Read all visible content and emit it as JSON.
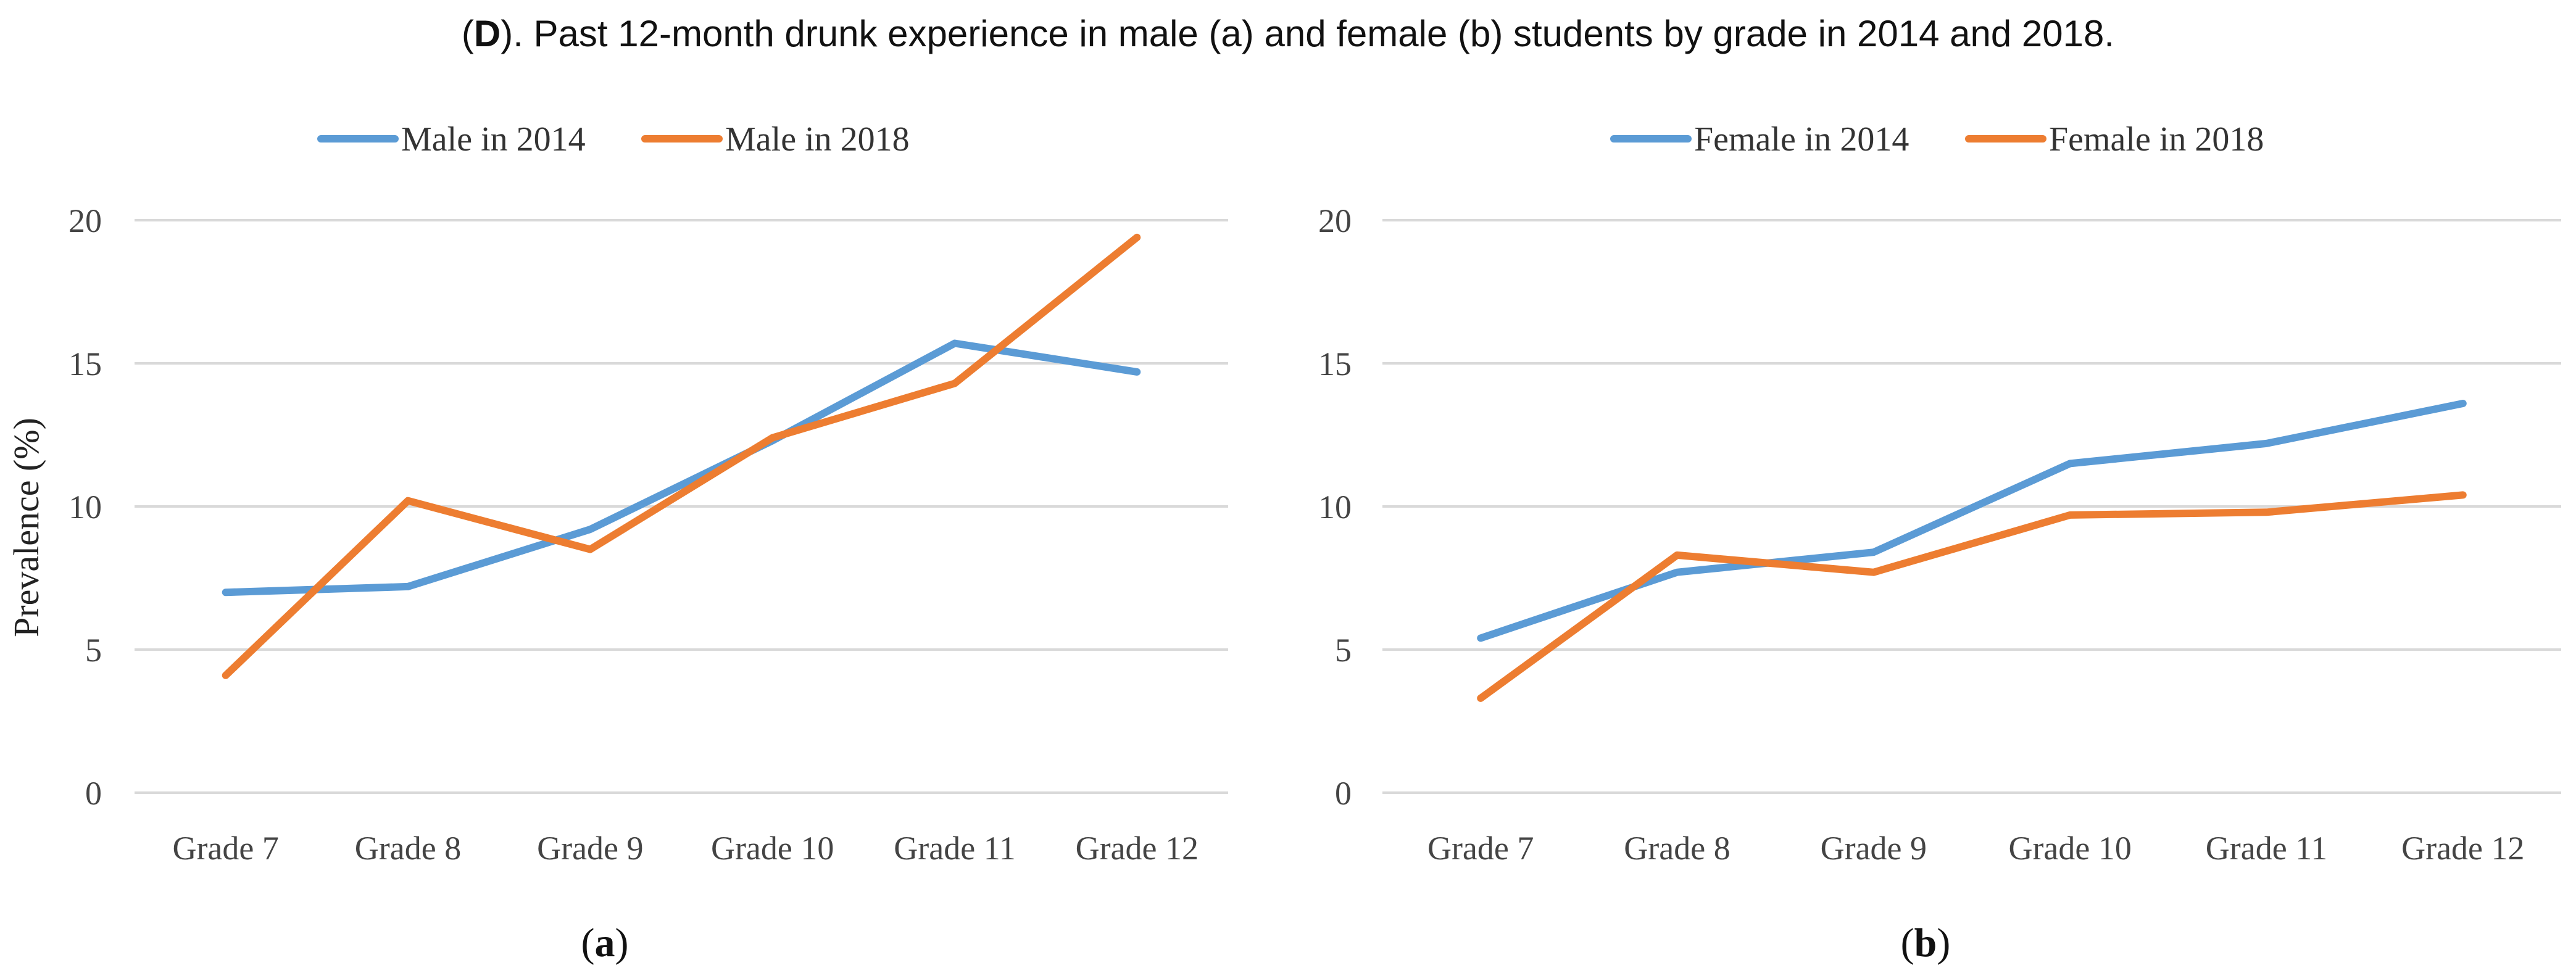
{
  "figure": {
    "title_prefix": "(",
    "title_bold": "D",
    "title_rest": "). Past 12-month drunk experience in male (a) and female (b) students by grade in 2014 and 2018."
  },
  "colors": {
    "blue": "#5b9bd5",
    "orange": "#ed7d31",
    "grid": "#d9d9d9"
  },
  "chart_data": [
    {
      "type": "line",
      "panel_label": "a",
      "ylabel": "Prevalence (%)",
      "ylim": [
        0,
        20
      ],
      "yticks": [
        "0",
        "5",
        "10",
        "15",
        "20"
      ],
      "grid": true,
      "legend": "top-center",
      "categories": [
        "Grade 7",
        "Grade 8",
        "Grade 9",
        "Grade 10",
        "Grade 11",
        "Grade 12"
      ],
      "series": [
        {
          "name": "Male in 2014",
          "color": "#5b9bd5",
          "values": [
            7.0,
            7.2,
            9.2,
            12.3,
            15.7,
            14.7
          ]
        },
        {
          "name": "Male in 2018",
          "color": "#ed7d31",
          "values": [
            4.1,
            10.2,
            8.5,
            12.4,
            14.3,
            19.4
          ]
        }
      ]
    },
    {
      "type": "line",
      "panel_label": "b",
      "ylabel": "",
      "ylim": [
        0,
        20
      ],
      "yticks": [
        "0",
        "5",
        "10",
        "15",
        "20"
      ],
      "grid": true,
      "legend": "top-center",
      "categories": [
        "Grade 7",
        "Grade 8",
        "Grade 9",
        "Grade 10",
        "Grade 11",
        "Grade 12"
      ],
      "series": [
        {
          "name": "Female in 2014",
          "color": "#5b9bd5",
          "values": [
            5.4,
            7.7,
            8.4,
            11.5,
            12.2,
            13.6
          ]
        },
        {
          "name": "Female in 2018",
          "color": "#ed7d31",
          "values": [
            3.3,
            8.3,
            7.7,
            9.7,
            9.8,
            10.4
          ]
        }
      ]
    }
  ]
}
